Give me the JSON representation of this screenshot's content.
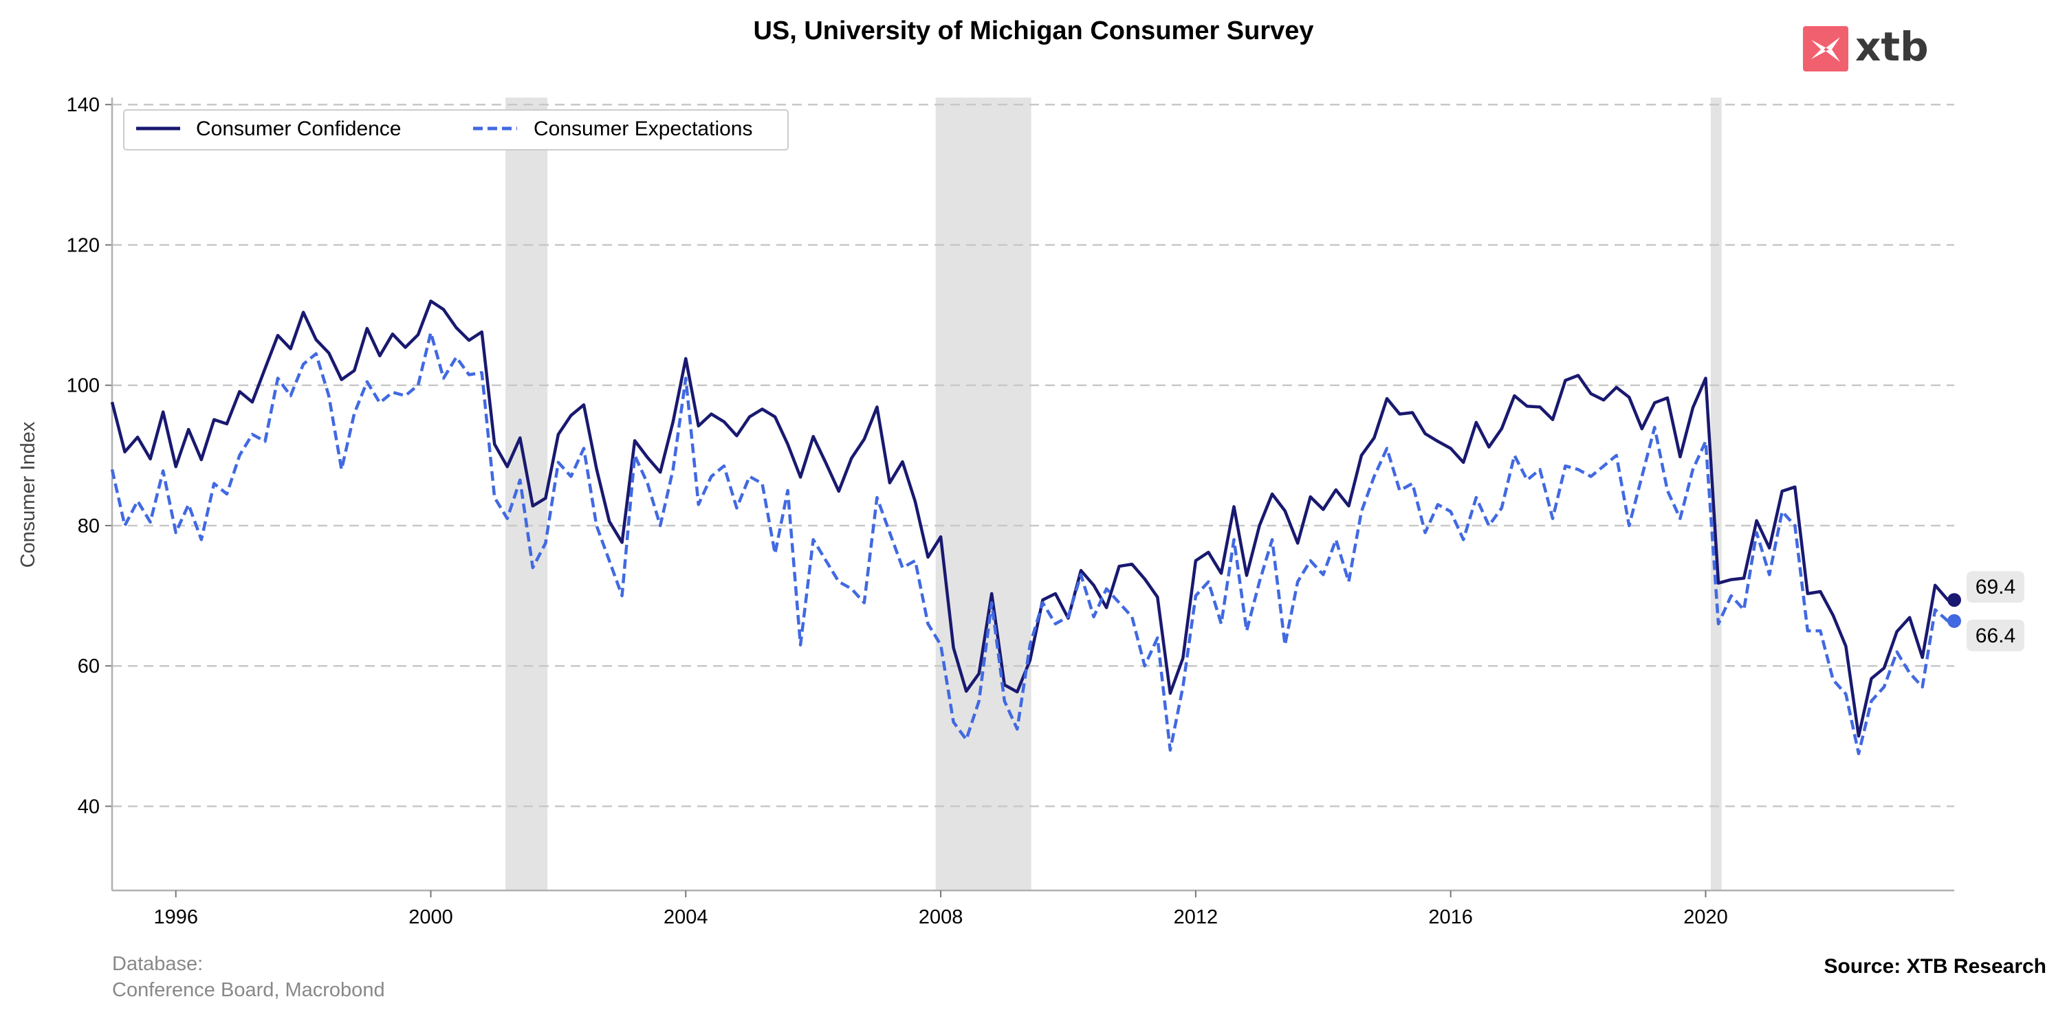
{
  "logo": {
    "text": "xtb",
    "mark_color": "#f1606f"
  },
  "footer": {
    "database_label": "Database:",
    "database_sources": "Conference Board, Macrobond",
    "source": "Source: XTB Research"
  },
  "colors": {
    "confidence": "#191970",
    "expectations": "#4169e1",
    "recession": "#e3e3e3",
    "grid": "#c8c8c8",
    "axis": "#b0b0b0",
    "end_label_bg": "#e9e9e9"
  },
  "chart_data": {
    "type": "line",
    "title": "US, University of Michigan Consumer Survey",
    "xlabel": "",
    "ylabel": "Consumer Index",
    "xlim": [
      1995.0,
      2023.9
    ],
    "ylim": [
      28,
      141
    ],
    "yticks": [
      40,
      60,
      80,
      100,
      120,
      140
    ],
    "xticks": [
      1996,
      2000,
      2004,
      2008,
      2012,
      2016,
      2020
    ],
    "grid": "horizontal dashed",
    "legend_position": "top-left",
    "recession_bands": [
      [
        2001.17,
        2001.83
      ],
      [
        2007.92,
        2009.42
      ],
      [
        2020.08,
        2020.25
      ]
    ],
    "series": [
      {
        "name": "Consumer Confidence",
        "style": "solid",
        "end_label": "69.4",
        "x": [
          1995.0,
          1995.2,
          1995.4,
          1995.6,
          1995.8,
          1996.0,
          1996.2,
          1996.4,
          1996.6,
          1996.8,
          1997.0,
          1997.2,
          1997.4,
          1997.6,
          1997.8,
          1998.0,
          1998.2,
          1998.4,
          1998.6,
          1998.8,
          1999.0,
          1999.2,
          1999.4,
          1999.6,
          1999.8,
          2000.0,
          2000.2,
          2000.4,
          2000.6,
          2000.8,
          2001.0,
          2001.2,
          2001.4,
          2001.6,
          2001.8,
          2002.0,
          2002.2,
          2002.4,
          2002.6,
          2002.8,
          2003.0,
          2003.2,
          2003.4,
          2003.6,
          2003.8,
          2004.0,
          2004.2,
          2004.4,
          2004.6,
          2004.8,
          2005.0,
          2005.2,
          2005.4,
          2005.6,
          2005.8,
          2006.0,
          2006.2,
          2006.4,
          2006.6,
          2006.8,
          2007.0,
          2007.2,
          2007.4,
          2007.6,
          2007.8,
          2008.0,
          2008.2,
          2008.4,
          2008.6,
          2008.8,
          2009.0,
          2009.2,
          2009.4,
          2009.6,
          2009.8,
          2010.0,
          2010.2,
          2010.4,
          2010.6,
          2010.8,
          2011.0,
          2011.2,
          2011.4,
          2011.6,
          2011.8,
          2012.0,
          2012.2,
          2012.4,
          2012.6,
          2012.8,
          2013.0,
          2013.2,
          2013.4,
          2013.6,
          2013.8,
          2014.0,
          2014.2,
          2014.4,
          2014.6,
          2014.8,
          2015.0,
          2015.2,
          2015.4,
          2015.6,
          2015.8,
          2016.0,
          2016.2,
          2016.4,
          2016.6,
          2016.8,
          2017.0,
          2017.2,
          2017.4,
          2017.6,
          2017.8,
          2018.0,
          2018.2,
          2018.4,
          2018.6,
          2018.8,
          2019.0,
          2019.2,
          2019.4,
          2019.6,
          2019.8,
          2020.0,
          2020.2,
          2020.4,
          2020.6,
          2020.8,
          2021.0,
          2021.2,
          2021.4,
          2021.6,
          2021.8,
          2022.0,
          2022.2,
          2022.4,
          2022.6,
          2022.8,
          2023.0,
          2023.2,
          2023.4,
          2023.6,
          2023.8,
          2023.9
        ],
        "y": [
          97.6,
          90.5,
          92.6,
          89.5,
          96.2,
          88.4,
          93.7,
          89.4,
          95.1,
          94.5,
          99.1,
          97.6,
          102.4,
          107.1,
          105.2,
          110.4,
          106.5,
          104.6,
          100.8,
          102.1,
          108.1,
          104.2,
          107.3,
          105.4,
          107.2,
          112.0,
          110.8,
          108.2,
          106.4,
          107.6,
          91.6,
          88.4,
          92.5,
          82.8,
          83.9,
          93.0,
          95.7,
          97.2,
          88.1,
          80.6,
          77.6,
          92.1,
          89.7,
          87.6,
          94.8,
          103.8,
          94.2,
          95.9,
          94.8,
          92.8,
          95.5,
          96.6,
          95.5,
          91.6,
          86.9,
          92.7,
          88.9,
          84.9,
          89.6,
          92.3,
          96.9,
          86.1,
          89.1,
          83.4,
          75.5,
          78.4,
          62.6,
          56.4,
          58.9,
          70.3,
          57.3,
          56.3,
          60.8,
          69.4,
          70.3,
          66.8,
          73.6,
          71.5,
          68.3,
          74.2,
          74.5,
          72.4,
          69.8,
          56.1,
          61.1,
          75.0,
          76.2,
          73.2,
          82.7,
          72.9,
          80.0,
          84.5,
          82.1,
          77.5,
          84.1,
          82.3,
          85.1,
          82.8,
          90.0,
          92.5,
          98.1,
          95.9,
          96.1,
          93.1,
          92.0,
          91.0,
          89.0,
          94.7,
          91.2,
          93.8,
          98.5,
          97.0,
          96.9,
          95.1,
          100.7,
          101.4,
          98.8,
          97.9,
          99.7,
          98.3,
          93.8,
          97.5,
          98.2,
          89.8,
          96.8,
          101.0,
          71.8,
          72.3,
          72.5,
          80.7,
          76.8,
          84.9,
          85.5,
          70.3,
          70.6,
          67.2,
          62.8,
          50.0,
          58.2,
          59.7,
          64.9,
          66.9,
          61.2,
          71.5,
          69.4,
          69.4
        ],
        "color": "#191970"
      },
      {
        "name": "Consumer Expectations",
        "style": "dashed",
        "end_label": "66.4",
        "x": [
          1995.0,
          1995.2,
          1995.4,
          1995.6,
          1995.8,
          1996.0,
          1996.2,
          1996.4,
          1996.6,
          1996.8,
          1997.0,
          1997.2,
          1997.4,
          1997.6,
          1997.8,
          1998.0,
          1998.2,
          1998.4,
          1998.6,
          1998.8,
          1999.0,
          1999.2,
          1999.4,
          1999.6,
          1999.8,
          2000.0,
          2000.2,
          2000.4,
          2000.6,
          2000.8,
          2001.0,
          2001.2,
          2001.4,
          2001.6,
          2001.8,
          2002.0,
          2002.2,
          2002.4,
          2002.6,
          2002.8,
          2003.0,
          2003.2,
          2003.4,
          2003.6,
          2003.8,
          2004.0,
          2004.2,
          2004.4,
          2004.6,
          2004.8,
          2005.0,
          2005.2,
          2005.4,
          2005.6,
          2005.8,
          2006.0,
          2006.2,
          2006.4,
          2006.6,
          2006.8,
          2007.0,
          2007.2,
          2007.4,
          2007.6,
          2007.8,
          2008.0,
          2008.2,
          2008.4,
          2008.6,
          2008.8,
          2009.0,
          2009.2,
          2009.4,
          2009.6,
          2009.8,
          2010.0,
          2010.2,
          2010.4,
          2010.6,
          2010.8,
          2011.0,
          2011.2,
          2011.4,
          2011.6,
          2011.8,
          2012.0,
          2012.2,
          2012.4,
          2012.6,
          2012.8,
          2013.0,
          2013.2,
          2013.4,
          2013.6,
          2013.8,
          2014.0,
          2014.2,
          2014.4,
          2014.6,
          2014.8,
          2015.0,
          2015.2,
          2015.4,
          2015.6,
          2015.8,
          2016.0,
          2016.2,
          2016.4,
          2016.6,
          2016.8,
          2017.0,
          2017.2,
          2017.4,
          2017.6,
          2017.8,
          2018.0,
          2018.2,
          2018.4,
          2018.6,
          2018.8,
          2019.0,
          2019.2,
          2019.4,
          2019.6,
          2019.8,
          2020.0,
          2020.2,
          2020.4,
          2020.6,
          2020.8,
          2021.0,
          2021.2,
          2021.4,
          2021.6,
          2021.8,
          2022.0,
          2022.2,
          2022.4,
          2022.6,
          2022.8,
          2023.0,
          2023.2,
          2023.4,
          2023.6,
          2023.8,
          2023.9
        ],
        "y": [
          88.0,
          80.0,
          83.5,
          80.5,
          87.8,
          79.0,
          83.0,
          78.0,
          86.0,
          84.5,
          90.0,
          93.0,
          92.0,
          101.0,
          98.5,
          103.0,
          104.5,
          98.5,
          88.0,
          96.0,
          100.5,
          97.5,
          99.0,
          98.5,
          100.0,
          107.5,
          101.0,
          104.0,
          101.5,
          101.8,
          84.0,
          81.0,
          86.5,
          74.0,
          77.5,
          89.0,
          87.0,
          91.0,
          80.0,
          75.0,
          70.0,
          90.0,
          86.0,
          80.0,
          88.0,
          101.0,
          83.0,
          87.0,
          88.5,
          82.5,
          87.0,
          86.0,
          76.0,
          85.0,
          63.0,
          78.0,
          75.0,
          72.0,
          71.0,
          69.0,
          84.0,
          79.0,
          74.0,
          75.0,
          66.0,
          63.0,
          52.0,
          49.5,
          55.0,
          69.0,
          55.0,
          51.0,
          63.0,
          69.0,
          66.0,
          67.0,
          73.0,
          67.0,
          71.0,
          69.0,
          67.0,
          60.0,
          64.0,
          48.0,
          57.0,
          70.0,
          72.0,
          66.0,
          78.0,
          65.0,
          72.0,
          78.0,
          63.0,
          72.0,
          75.0,
          73.0,
          78.0,
          72.0,
          82.0,
          87.0,
          91.0,
          85.0,
          86.0,
          79.0,
          83.0,
          82.0,
          78.0,
          84.0,
          80.0,
          82.5,
          90.0,
          86.5,
          88.0,
          81.0,
          88.5,
          88.0,
          87.0,
          88.5,
          90.0,
          80.0,
          87.0,
          94.0,
          85.0,
          81.0,
          88.0,
          92.0,
          66.0,
          70.0,
          68.0,
          79.0,
          73.0,
          82.0,
          80.0,
          65.0,
          65.0,
          58.0,
          56.0,
          47.5,
          55.0,
          57.0,
          62.0,
          59.0,
          57.0,
          68.0,
          66.4,
          66.4
        ],
        "color": "#4169e1"
      }
    ]
  }
}
